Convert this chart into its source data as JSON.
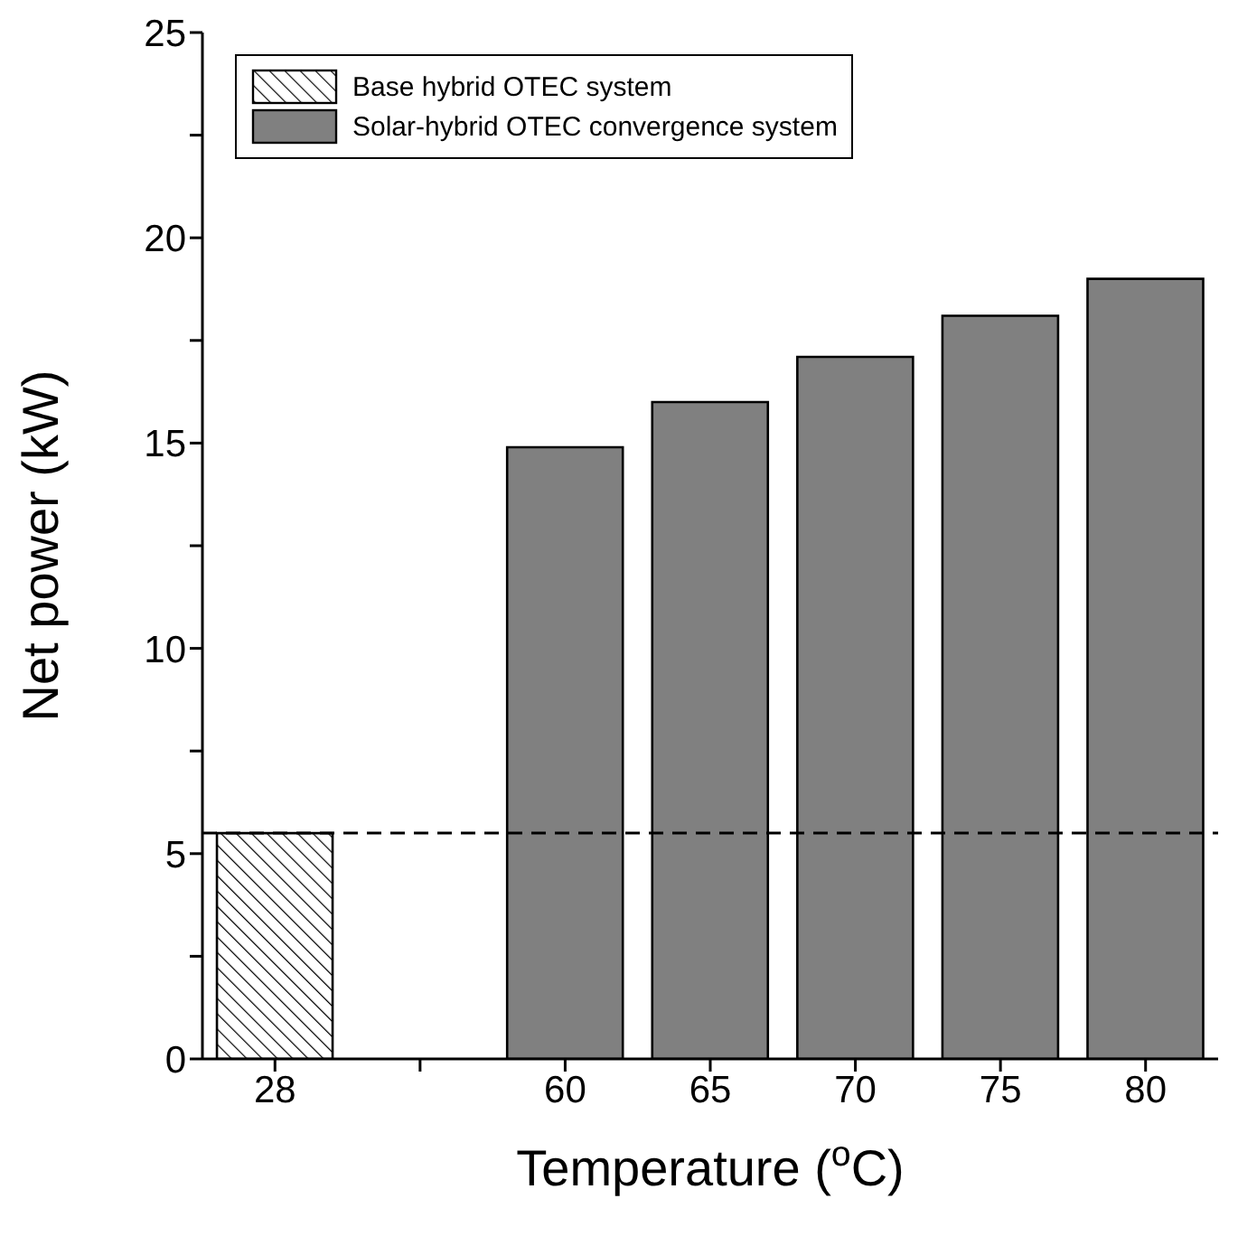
{
  "chart_data": {
    "type": "bar",
    "xlabel": "Temperature ($^{o}$C)",
    "ylabel": "Net power (kW)",
    "categories": [
      "28",
      null,
      "60",
      "65",
      "70",
      "75",
      "80"
    ],
    "series": [
      {
        "name": "Base hybrid OTEC system",
        "color": "#000000",
        "values": [
          5.5,
          null,
          null,
          null,
          null,
          null,
          null
        ]
      },
      {
        "name": "Solar-hybrid OTEC convergence system",
        "color": "#808080",
        "values": [
          null,
          null,
          14.9,
          16.0,
          17.1,
          18.1,
          19.0
        ]
      }
    ],
    "ylim": [
      0,
      25
    ],
    "yticks": [
      0,
      {
        "value": 2.5,
        "label": null
      },
      5,
      {
        "value": 7.5,
        "label": null
      },
      10,
      {
        "value": 12.5,
        "label": null
      },
      15,
      {
        "value": 17.5,
        "label": null
      },
      20,
      {
        "value": 22.5,
        "label": null
      },
      25
    ],
    "ref_lines": [
      {
        "axis": "y",
        "value": 5.5,
        "color": "#000000",
        "line_style": "dashed"
      }
    ],
    "grid": false,
    "legend": "top left"
  }
}
